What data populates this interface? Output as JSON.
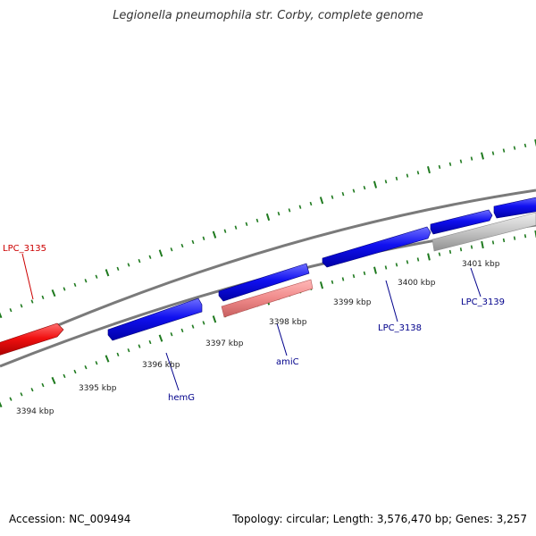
{
  "title": "Legionella pneumophila str. Corby, complete genome",
  "footer": {
    "accession": "Accession: NC_009494",
    "summary": "Topology: circular; Length: 3,576,470 bp; Genes: 3,257"
  },
  "colors": {
    "backbone": "#808080",
    "ticks": "#1f7a1f",
    "forward_gene": "#0000ee",
    "reverse_gene": "#ee0000",
    "highlight_reverse": "#f08080",
    "highlight_neutral": "#c0c0c0",
    "label_blue": "#00008b",
    "label_red": "#cc0000"
  },
  "scale_labels": [
    "3394 kbp",
    "3395 kbp",
    "3396 kbp",
    "3397 kbp",
    "3398 kbp",
    "3399 kbp",
    "3400 kbp",
    "3401 kbp"
  ],
  "gene_labels": {
    "lpc3135": "LPC_3135",
    "hemG": "hemG",
    "amiC": "amiC",
    "lpc3138": "LPC_3138",
    "lpc3139": "LPC_3139"
  }
}
